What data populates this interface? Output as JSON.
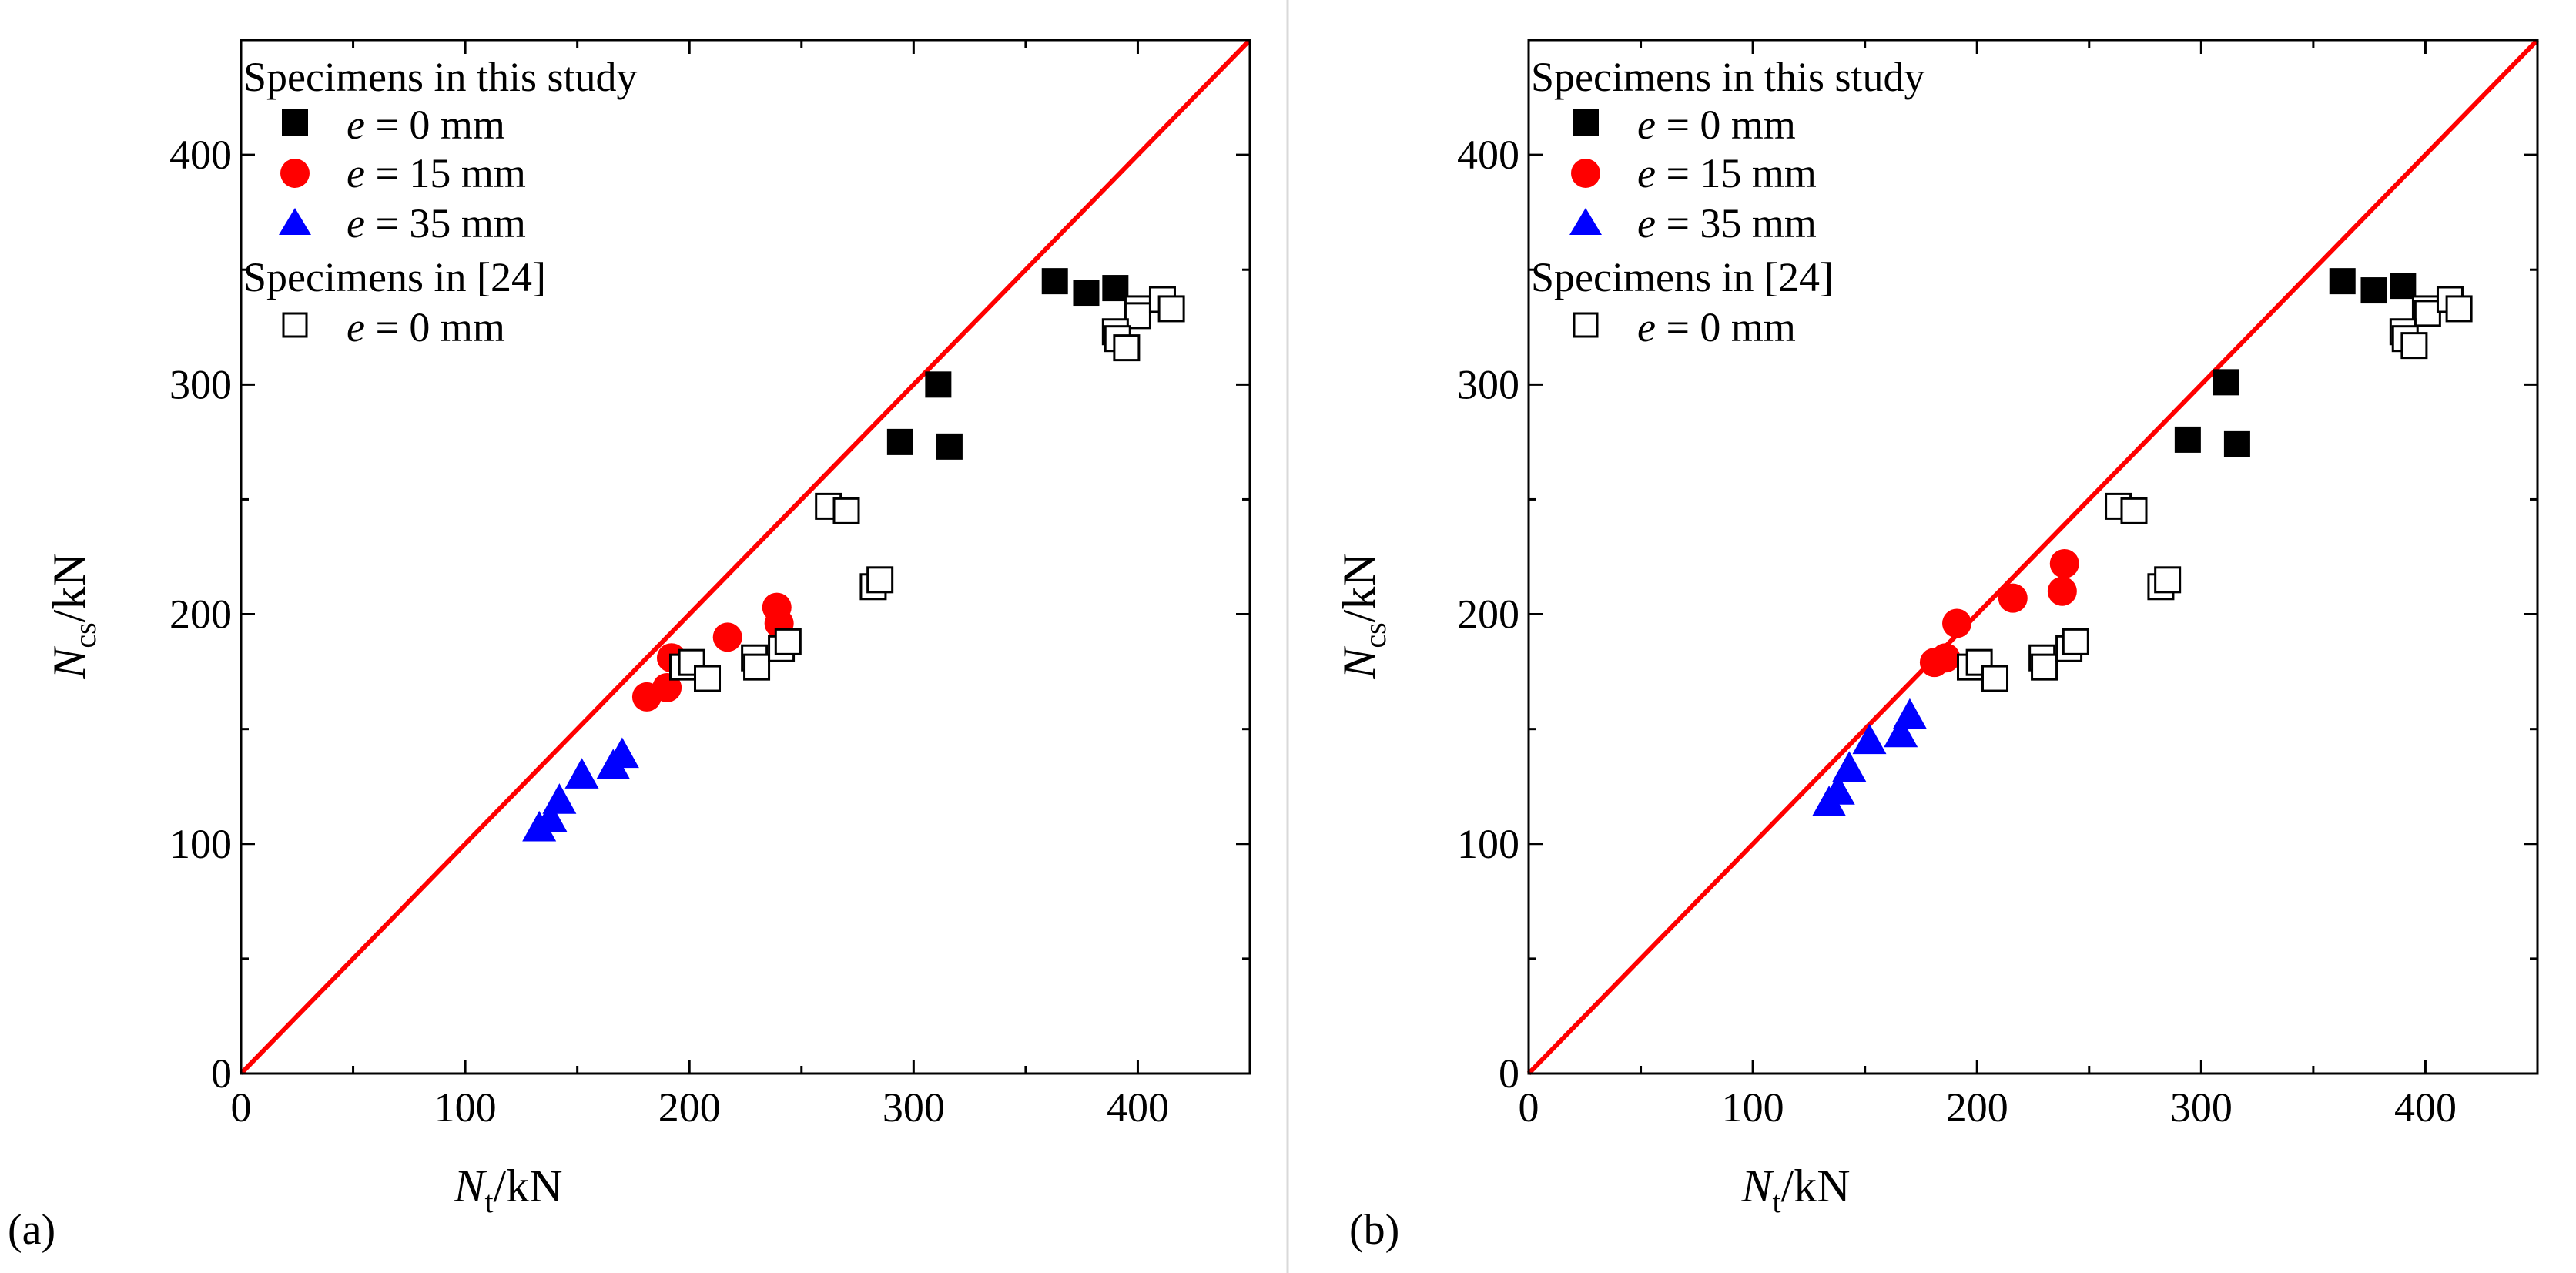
{
  "chart_data": [
    {
      "type": "scatter",
      "panel_label": "(a)",
      "xlabel": {
        "main": "N",
        "sub": "t",
        "unit": "/kN"
      },
      "ylabel": {
        "main": "N",
        "sub": "cs",
        "unit": "/kN"
      },
      "xlim": [
        0,
        450
      ],
      "ylim": [
        0,
        450
      ],
      "x_ticks": [
        0,
        100,
        200,
        300,
        400
      ],
      "y_ticks": [
        0,
        100,
        200,
        300,
        400
      ],
      "reference_line": {
        "name": "y = x",
        "color": "#ff0000",
        "from": [
          0,
          0
        ],
        "to": [
          450,
          450
        ]
      },
      "legend": {
        "group1_title": "Specimens in this study",
        "group2_title": "Specimens in [24]",
        "items": [
          {
            "series": "e0",
            "text_italic": "e",
            "text_rest": " = 0 mm"
          },
          {
            "series": "e15",
            "text_italic": "e",
            "text_rest": " = 15 mm"
          },
          {
            "series": "e35",
            "text_italic": "e",
            "text_rest": " = 35 mm"
          },
          {
            "series": "ref24",
            "text_italic": "e",
            "text_rest": " = 0 mm"
          }
        ]
      },
      "series": [
        {
          "name": "e = 0 mm",
          "key": "e0",
          "marker": "square",
          "color": "#000000",
          "points": [
            [
              363,
              345
            ],
            [
              377,
              340
            ],
            [
              390,
              342
            ],
            [
              311,
              300
            ],
            [
              294,
              275
            ],
            [
              316,
              273
            ]
          ]
        },
        {
          "name": "e = 15 mm",
          "key": "e15",
          "marker": "circle",
          "color": "#ff0000",
          "points": [
            [
              181,
              164
            ],
            [
              190,
              168
            ],
            [
              192,
              181
            ],
            [
              217,
              190
            ],
            [
              239,
              203
            ],
            [
              240,
              196
            ]
          ]
        },
        {
          "name": "e = 35 mm",
          "key": "e35",
          "marker": "triangle",
          "color": "#0000ff",
          "points": [
            [
              133,
              107
            ],
            [
              138,
              111
            ],
            [
              142,
              119
            ],
            [
              152,
              130
            ],
            [
              166,
              134
            ],
            [
              170,
              139
            ]
          ]
        },
        {
          "name": "Specimens in [24] e = 0 mm",
          "key": "ref24",
          "marker": "square-open",
          "color": "#000000",
          "points": [
            [
              262,
              247
            ],
            [
              270,
              245
            ],
            [
              282,
              212
            ],
            [
              285,
              215
            ],
            [
              197,
              177
            ],
            [
              201,
              179
            ],
            [
              208,
              172
            ],
            [
              229,
              181
            ],
            [
              230,
              177
            ],
            [
              241,
              185
            ],
            [
              244,
              188
            ],
            [
              400,
              333
            ],
            [
              400,
              330
            ],
            [
              390,
              323
            ],
            [
              391,
              320
            ],
            [
              395,
              316
            ],
            [
              411,
              337
            ],
            [
              415,
              333
            ]
          ]
        }
      ]
    },
    {
      "type": "scatter",
      "panel_label": "(b)",
      "xlabel": {
        "main": "N",
        "sub": "t",
        "unit": "/kN"
      },
      "ylabel": {
        "main": "N",
        "sub": "cs",
        "unit": "/kN"
      },
      "xlim": [
        0,
        450
      ],
      "ylim": [
        0,
        450
      ],
      "x_ticks": [
        0,
        100,
        200,
        300,
        400
      ],
      "y_ticks": [
        0,
        100,
        200,
        300,
        400
      ],
      "reference_line": {
        "name": "y = x",
        "color": "#ff0000",
        "from": [
          0,
          0
        ],
        "to": [
          450,
          450
        ]
      },
      "legend": {
        "group1_title": "Specimens in this study",
        "group2_title": "Specimens in [24]",
        "items": [
          {
            "series": "e0",
            "text_italic": "e",
            "text_rest": " = 0 mm"
          },
          {
            "series": "e15",
            "text_italic": "e",
            "text_rest": " = 15 mm"
          },
          {
            "series": "e35",
            "text_italic": "e",
            "text_rest": " = 35 mm"
          },
          {
            "series": "ref24",
            "text_italic": "e",
            "text_rest": " = 0 mm"
          }
        ]
      },
      "series": [
        {
          "name": "e = 0 mm",
          "key": "e0",
          "marker": "square",
          "color": "#000000",
          "points": [
            [
              363,
              345
            ],
            [
              377,
              341
            ],
            [
              390,
              343
            ],
            [
              311,
              301
            ],
            [
              294,
              276
            ],
            [
              316,
              274
            ]
          ]
        },
        {
          "name": "e = 15 mm",
          "key": "e15",
          "marker": "circle",
          "color": "#ff0000",
          "points": [
            [
              181,
              179
            ],
            [
              186,
              181
            ],
            [
              191,
              196
            ],
            [
              216,
              207
            ],
            [
              238,
              210
            ],
            [
              239,
              222
            ]
          ]
        },
        {
          "name": "e = 35 mm",
          "key": "e35",
          "marker": "triangle",
          "color": "#0000ff",
          "points": [
            [
              134,
              118
            ],
            [
              138,
              123
            ],
            [
              143,
              133
            ],
            [
              152,
              145
            ],
            [
              166,
              148
            ],
            [
              170,
              156
            ]
          ]
        },
        {
          "name": "Specimens in [24] e = 0 mm",
          "key": "ref24",
          "marker": "square-open",
          "color": "#000000",
          "points": [
            [
              263,
              247
            ],
            [
              270,
              245
            ],
            [
              282,
              212
            ],
            [
              285,
              215
            ],
            [
              197,
              177
            ],
            [
              201,
              179
            ],
            [
              208,
              172
            ],
            [
              229,
              181
            ],
            [
              230,
              177
            ],
            [
              241,
              185
            ],
            [
              244,
              188
            ],
            [
              400,
              333
            ],
            [
              401,
              331
            ],
            [
              390,
              323
            ],
            [
              391,
              320
            ],
            [
              395,
              317
            ],
            [
              411,
              337
            ],
            [
              415,
              333
            ]
          ]
        }
      ]
    }
  ]
}
